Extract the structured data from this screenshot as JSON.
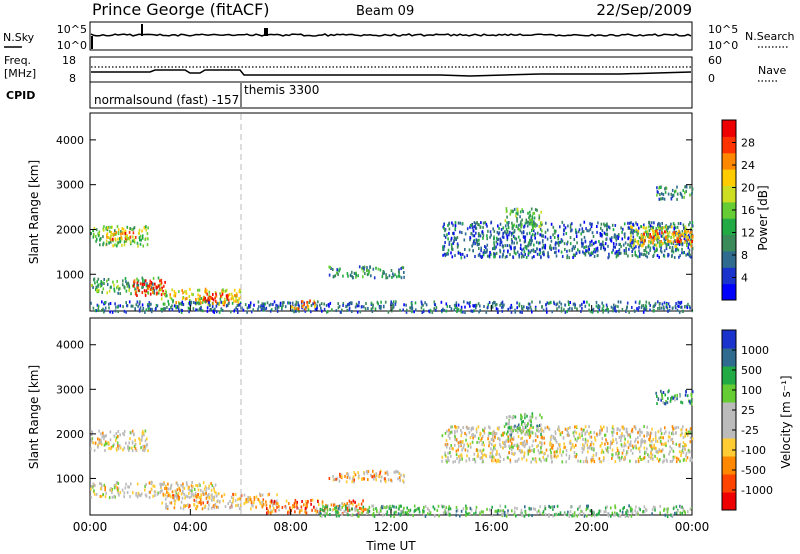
{
  "header": {
    "station": "Prince George (fitACF)",
    "beam": "Beam 09",
    "date": "22/Sep/2009"
  },
  "top_panels": {
    "noise": {
      "left_label": "N.Sky",
      "right_label": "N.Search",
      "left_ticks": [
        "10^5",
        "10^0"
      ],
      "right_ticks": [
        "10^5",
        "10^0"
      ]
    },
    "freq": {
      "left_label": "Freq.",
      "left_unit": "[MHz]",
      "left_ticks": [
        "18",
        "8"
      ],
      "right_label": "Nave",
      "right_ticks": [
        "60",
        "0"
      ]
    },
    "cpid": {
      "label": "CPID",
      "modes": [
        {
          "name": "normalsound (fast) -157"
        },
        {
          "name": "themis 3300"
        }
      ]
    }
  },
  "chart_data": [
    {
      "type": "heatmap",
      "panel": "power",
      "ylabel": "Slant Range [km]",
      "xlabel": "",
      "x_ticks": [
        "00:00",
        "04:00",
        "08:00",
        "12:00",
        "16:00",
        "20:00",
        "00:00"
      ],
      "xlim": [
        0,
        24
      ],
      "y_ticks": [
        "1000",
        "2000",
        "3000",
        "4000"
      ],
      "ylim": [
        180,
        4600
      ],
      "colorbar": {
        "label": "Power [dB]",
        "ticks": [
          "28",
          "24",
          "20",
          "16",
          "12",
          "8",
          "4"
        ],
        "colors": [
          "#0000ff",
          "#1a33cc",
          "#2e6b8f",
          "#3a8a5a",
          "#22aa44",
          "#66cc33",
          "#ccdd22",
          "#ffcc00",
          "#ff8800",
          "#ff3300",
          "#ee0000"
        ],
        "range": [
          0,
          32
        ]
      },
      "clusters": [
        {
          "t0": 0.0,
          "t1": 2.3,
          "r0": 1650,
          "r1": 2100,
          "level": 5
        },
        {
          "t0": 0.6,
          "t1": 1.8,
          "r0": 1800,
          "r1": 2000,
          "level": 8
        },
        {
          "t0": 0.0,
          "t1": 2.8,
          "r0": 600,
          "r1": 950,
          "level": 4
        },
        {
          "t0": 1.7,
          "t1": 3.0,
          "r0": 550,
          "r1": 900,
          "level": 10
        },
        {
          "t0": 2.8,
          "t1": 6.0,
          "r0": 350,
          "r1": 700,
          "level": 6
        },
        {
          "t0": 4.5,
          "t1": 5.5,
          "r0": 350,
          "r1": 600,
          "level": 9
        },
        {
          "t0": 0.0,
          "t1": 24.0,
          "r0": 180,
          "r1": 420,
          "level": 2
        },
        {
          "t0": 8.0,
          "t1": 9.0,
          "r0": 250,
          "r1": 450,
          "level": 8
        },
        {
          "t0": 9.5,
          "t1": 12.5,
          "r0": 950,
          "r1": 1200,
          "level": 3
        },
        {
          "t0": 14.0,
          "t1": 24.0,
          "r0": 1400,
          "r1": 2200,
          "level": 2
        },
        {
          "t0": 16.5,
          "t1": 18.0,
          "r0": 2000,
          "r1": 2500,
          "level": 4
        },
        {
          "t0": 21.5,
          "t1": 24.0,
          "r0": 1650,
          "r1": 2100,
          "level": 6
        },
        {
          "t0": 22.0,
          "t1": 24.0,
          "r0": 1750,
          "r1": 2000,
          "level": 8
        },
        {
          "t0": 22.5,
          "t1": 24.0,
          "r0": 2700,
          "r1": 3000,
          "level": 3
        }
      ]
    },
    {
      "type": "heatmap",
      "panel": "velocity",
      "ylabel": "Slant Range [km]",
      "xlabel": "Time UT",
      "x_ticks": [
        "00:00",
        "04:00",
        "08:00",
        "12:00",
        "16:00",
        "20:00",
        "00:00"
      ],
      "xlim": [
        0,
        24
      ],
      "y_ticks": [
        "1000",
        "2000",
        "3000",
        "4000"
      ],
      "ylim": [
        180,
        4600
      ],
      "colorbar": {
        "label": "Velocity [m s⁻¹]",
        "ticks": [
          "1000",
          "500",
          "100",
          "25",
          "-25",
          "-100",
          "-500",
          "-1000"
        ],
        "colors": [
          "#ee0000",
          "#ff4400",
          "#ff8800",
          "#ffcc33",
          "#bbbbbb",
          "#bbbbbb",
          "#66cc33",
          "#22aa44",
          "#2e6b8f",
          "#1a33cc"
        ],
        "range": [
          -1200,
          1200
        ]
      },
      "clusters": [
        {
          "t0": 0.0,
          "t1": 2.3,
          "r0": 1650,
          "r1": 2100,
          "level": 4
        },
        {
          "t0": 0.0,
          "t1": 5.0,
          "r0": 600,
          "r1": 950,
          "level": 4
        },
        {
          "t0": 2.8,
          "t1": 7.5,
          "r0": 350,
          "r1": 700,
          "level": 3
        },
        {
          "t0": 7.0,
          "t1": 11.0,
          "r0": 250,
          "r1": 550,
          "level": 2
        },
        {
          "t0": 9.5,
          "t1": 12.5,
          "r0": 950,
          "r1": 1200,
          "level": 3
        },
        {
          "t0": 9.0,
          "t1": 24.0,
          "r0": 180,
          "r1": 420,
          "level": 6
        },
        {
          "t0": 14.0,
          "t1": 24.0,
          "r0": 1400,
          "r1": 2200,
          "level": 4
        },
        {
          "t0": 16.5,
          "t1": 18.0,
          "r0": 2000,
          "r1": 2500,
          "level": 6
        },
        {
          "t0": 22.5,
          "t1": 24.0,
          "r0": 2700,
          "r1": 3000,
          "level": 7
        }
      ]
    }
  ]
}
